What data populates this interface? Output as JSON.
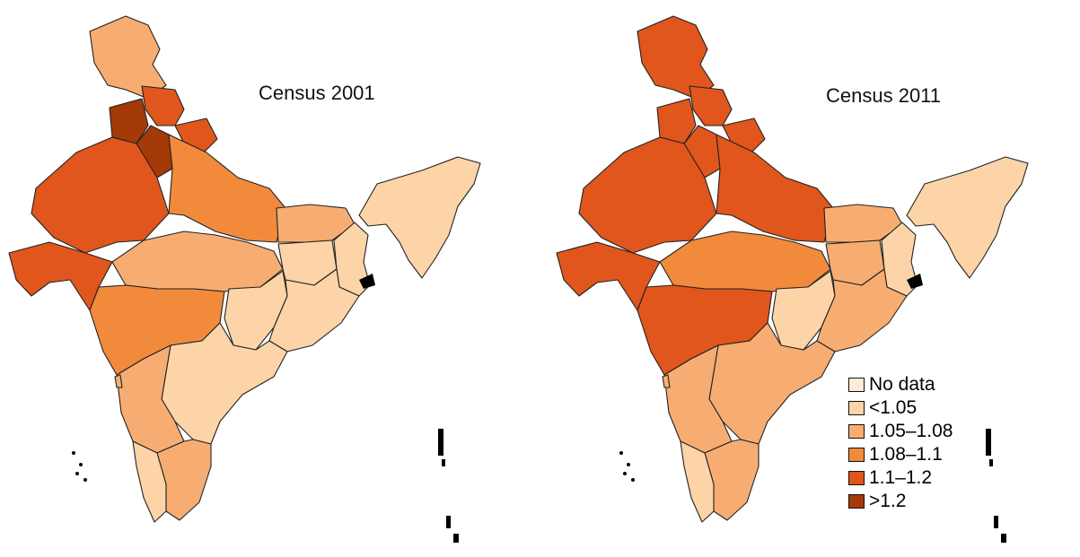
{
  "maps": [
    {
      "title": "Census 2001",
      "regions": [
        {
          "id": "jammu-kashmir",
          "class": "1.05–1.08"
        },
        {
          "id": "himachal-pradesh",
          "class": "1.1–1.2"
        },
        {
          "id": "punjab",
          "class": ">1.2"
        },
        {
          "id": "haryana",
          "class": ">1.2"
        },
        {
          "id": "uttarakhand",
          "class": "1.1–1.2"
        },
        {
          "id": "rajasthan",
          "class": "1.1–1.2"
        },
        {
          "id": "gujarat",
          "class": "1.1–1.2"
        },
        {
          "id": "uttar-pradesh",
          "class": "1.08–1.1"
        },
        {
          "id": "madhya-pradesh",
          "class": "1.05–1.08"
        },
        {
          "id": "maharashtra",
          "class": "1.08–1.1"
        },
        {
          "id": "bihar",
          "class": "1.05–1.08"
        },
        {
          "id": "jharkhand",
          "class": "<1.05"
        },
        {
          "id": "west-bengal",
          "class": "<1.05"
        },
        {
          "id": "chhattisgarh",
          "class": "<1.05"
        },
        {
          "id": "odisha",
          "class": "<1.05"
        },
        {
          "id": "andhra-pradesh",
          "class": "<1.05"
        },
        {
          "id": "karnataka",
          "class": "1.05–1.08"
        },
        {
          "id": "goa",
          "class": "1.05–1.08"
        },
        {
          "id": "tamil-nadu",
          "class": "1.05–1.08"
        },
        {
          "id": "kerala",
          "class": "<1.05"
        },
        {
          "id": "northeast",
          "class": "<1.05"
        }
      ]
    },
    {
      "title": "Census 2011",
      "regions": [
        {
          "id": "jammu-kashmir",
          "class": "1.1–1.2"
        },
        {
          "id": "himachal-pradesh",
          "class": "1.1–1.2"
        },
        {
          "id": "punjab",
          "class": "1.1–1.2"
        },
        {
          "id": "haryana",
          "class": "1.1–1.2"
        },
        {
          "id": "uttarakhand",
          "class": "1.1–1.2"
        },
        {
          "id": "rajasthan",
          "class": "1.1–1.2"
        },
        {
          "id": "gujarat",
          "class": "1.1–1.2"
        },
        {
          "id": "uttar-pradesh",
          "class": "1.1–1.2"
        },
        {
          "id": "madhya-pradesh",
          "class": "1.08–1.1"
        },
        {
          "id": "maharashtra",
          "class": "1.1–1.2"
        },
        {
          "id": "bihar",
          "class": "1.05–1.08"
        },
        {
          "id": "jharkhand",
          "class": "1.05–1.08"
        },
        {
          "id": "west-bengal",
          "class": "<1.05"
        },
        {
          "id": "chhattisgarh",
          "class": "<1.05"
        },
        {
          "id": "odisha",
          "class": "1.05–1.08"
        },
        {
          "id": "andhra-pradesh",
          "class": "1.05–1.08"
        },
        {
          "id": "karnataka",
          "class": "1.05–1.08"
        },
        {
          "id": "goa",
          "class": "1.05–1.08"
        },
        {
          "id": "tamil-nadu",
          "class": "1.05–1.08"
        },
        {
          "id": "kerala",
          "class": "<1.05"
        },
        {
          "id": "northeast",
          "class": "<1.05"
        }
      ]
    }
  ],
  "legend": [
    {
      "label": "No data",
      "color": "#fdebd7"
    },
    {
      "label": "<1.05",
      "color": "#fdd4a8"
    },
    {
      "label": "1.05–1.08",
      "color": "#f7ad72"
    },
    {
      "label": "1.08–1.1",
      "color": "#f28a3c"
    },
    {
      "label": "1.1–1.2",
      "color": "#e0561c"
    },
    {
      "label": ">1.2",
      "color": "#a33a08"
    }
  ],
  "colors": {
    "outline": "#222222",
    "islands": "#000000"
  }
}
